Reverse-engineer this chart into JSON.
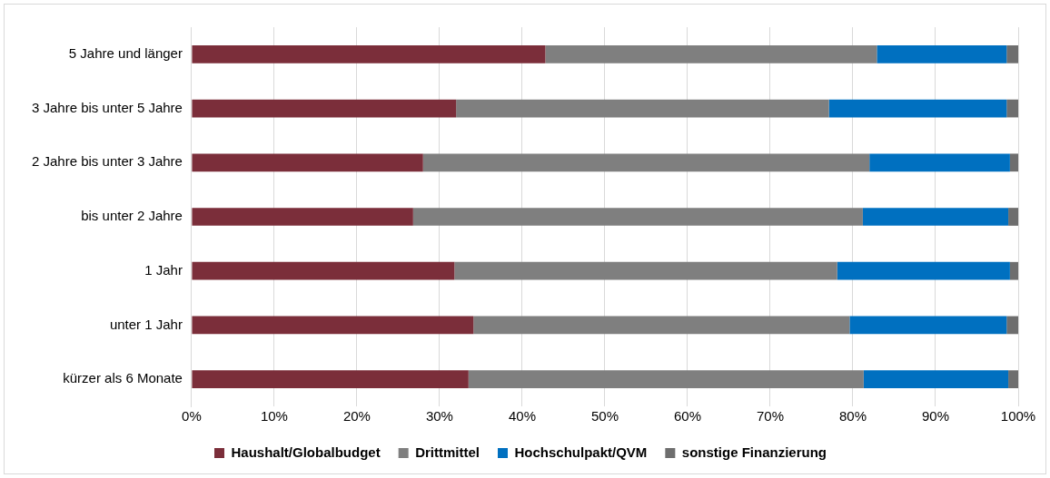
{
  "chart_data": {
    "type": "bar",
    "orientation": "horizontal",
    "stacked": true,
    "categories": [
      "5 Jahre und länger",
      "3 Jahre bis unter 5 Jahre",
      "2 Jahre bis unter 3 Jahre",
      "bis unter 2 Jahre",
      "1 Jahr",
      "unter 1 Jahr",
      "kürzer als 6 Monate"
    ],
    "series": [
      {
        "name": "Haushalt/Globalbudget",
        "color": "#7b2e3a",
        "values": [
          42.8,
          32.0,
          28.0,
          26.8,
          31.8,
          34.1,
          33.5
        ]
      },
      {
        "name": "Drittmittel",
        "color": "#7f7f7f",
        "values": [
          40.1,
          45.1,
          54.0,
          54.4,
          46.3,
          45.5,
          47.8
        ]
      },
      {
        "name": "Hochschulpakt/QVM",
        "color": "#0070c0",
        "values": [
          15.7,
          21.5,
          17.0,
          17.6,
          20.9,
          19.0,
          17.5
        ]
      },
      {
        "name": "sonstige Finanzierung",
        "color": "#6e6e6e",
        "values": [
          1.4,
          1.4,
          1.0,
          1.2,
          1.0,
          1.4,
          1.2
        ]
      }
    ],
    "xlim": [
      0,
      100
    ],
    "xticks": [
      {
        "value": 0,
        "label": "0%"
      },
      {
        "value": 10,
        "label": "10%"
      },
      {
        "value": 20,
        "label": "20%"
      },
      {
        "value": 30,
        "label": "30%"
      },
      {
        "value": 40,
        "label": "40%"
      },
      {
        "value": 50,
        "label": "50%"
      },
      {
        "value": 60,
        "label": "60%"
      },
      {
        "value": 70,
        "label": "70%"
      },
      {
        "value": 80,
        "label": "80%"
      },
      {
        "value": 90,
        "label": "90%"
      },
      {
        "value": 100,
        "label": "100%"
      }
    ],
    "grid": "x",
    "legend": "bottom"
  }
}
